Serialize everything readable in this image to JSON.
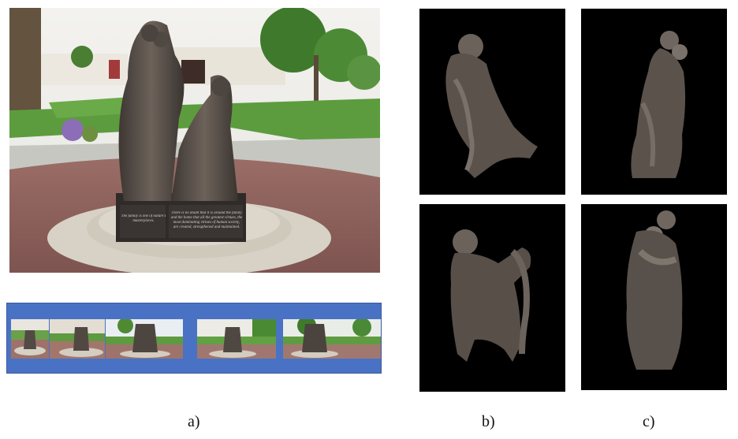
{
  "captions": {
    "a": "a)",
    "b": "b)",
    "c": "c)"
  },
  "plaque": {
    "left_text": "The family is one of nature's masterpieces.",
    "right_text": "There is no doubt that it is around the family and the home that all the greatest virtues, the most dominating virtues of human society, are created, strengthened and maintained."
  },
  "colors": {
    "filmstrip_background": "#4a72c4",
    "render_background": "#000000",
    "bronze": "#5a5048"
  }
}
